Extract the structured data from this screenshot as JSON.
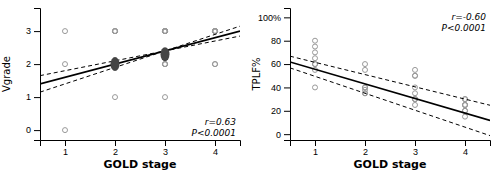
{
  "chart_data": [
    {
      "type": "scatter",
      "xlabel": "GOLD stage",
      "ylabel": "Vgrade",
      "annotations": [
        "r=0.63",
        "P<0.0001"
      ],
      "xlim": [
        0.5,
        4.5
      ],
      "xticks": [
        1,
        2,
        3,
        4
      ],
      "ylim": [
        -0.3,
        3.7
      ],
      "yticks": [
        0,
        1,
        2,
        3
      ],
      "series": [
        {
          "type": "scatter",
          "marker": "open-circle",
          "color": "#999999",
          "x": [
            1,
            1,
            1,
            2,
            2,
            2,
            2,
            2,
            2,
            2,
            3,
            3,
            3,
            3,
            3,
            3,
            3,
            3,
            3,
            3,
            3,
            3,
            4,
            4,
            4,
            4,
            4,
            4,
            4,
            4,
            4
          ],
          "values": [
            2.0,
            3.0,
            0.0,
            2.0,
            3.0,
            3.0,
            3.0,
            1.0,
            3.0,
            2.0,
            2.0,
            2.0,
            2.0,
            1.0,
            3.0,
            3.0,
            3.0,
            3.0,
            3.0,
            3.0,
            3.0,
            3.0,
            2.0,
            3.0,
            3.0,
            3.0,
            3.0,
            3.0,
            2.0,
            3.0,
            3.0
          ]
        },
        {
          "type": "line",
          "line_style": "solid",
          "color": "black",
          "x": [
            0.5,
            4.5
          ],
          "values": [
            1.4,
            3.0
          ]
        },
        {
          "type": "line",
          "line_style": "dashed",
          "color": "black",
          "x": [
            0.5,
            4.5
          ],
          "values": [
            1.15,
            3.15
          ]
        },
        {
          "type": "line",
          "line_style": "dashed",
          "color": "black",
          "x": [
            0.5,
            4.5
          ],
          "values": [
            1.65,
            2.85
          ]
        },
        {
          "type": "scatter",
          "marker": "filled-ellipse",
          "color": "#444444",
          "x": [
            2.0,
            3.0
          ],
          "values": [
            2.0,
            2.3
          ]
        }
      ]
    },
    {
      "type": "scatter",
      "xlabel": "GOLD stage",
      "ylabel": "TPLF%",
      "annotations": [
        "r=-0.60",
        "P<0.0001"
      ],
      "xlim": [
        0.5,
        4.5
      ],
      "xticks": [
        1,
        2,
        3,
        4
      ],
      "ylim": [
        -5,
        108
      ],
      "yticks": [
        0,
        20,
        40,
        60,
        80,
        {
          "value": 100,
          "label": "100%"
        }
      ],
      "series": [
        {
          "type": "scatter",
          "marker": "open-circle",
          "color": "#999999",
          "x": [
            1,
            1,
            1,
            1,
            1,
            1,
            1,
            1,
            2,
            2,
            2,
            2,
            2,
            2,
            2,
            3,
            3,
            3,
            3,
            3,
            3,
            3,
            3,
            3,
            4,
            4,
            4,
            4,
            4,
            4,
            4,
            4
          ],
          "values": [
            60,
            70,
            75,
            80,
            65,
            55,
            60,
            40,
            55,
            40,
            40,
            38,
            35,
            35,
            60,
            40,
            35,
            50,
            25,
            30,
            30,
            30,
            50,
            55,
            25,
            20,
            20,
            15,
            30,
            30,
            25,
            25
          ]
        },
        {
          "type": "line",
          "line_style": "solid",
          "color": "black",
          "x": [
            0.5,
            4.5
          ],
          "values": [
            61.75,
            11.75
          ]
        },
        {
          "type": "line",
          "line_style": "dashed",
          "color": "black",
          "x": [
            0.5,
            4.5
          ],
          "values": [
            66.75,
            24.75
          ]
        },
        {
          "type": "line",
          "line_style": "dashed",
          "color": "black",
          "x": [
            0.5,
            4.5
          ],
          "values": [
            56.75,
            -1.25
          ]
        }
      ]
    }
  ]
}
